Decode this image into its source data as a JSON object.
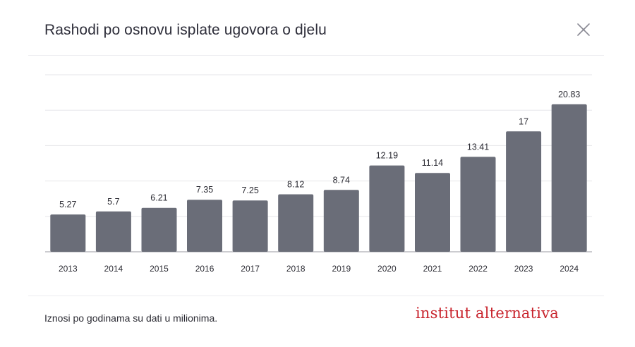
{
  "modal": {
    "title": "Rashodi po osnovu isplate ugovora o djelu",
    "close_icon": "close-icon"
  },
  "footer": {
    "note": "Iznosi po godinama su dati u milionima.",
    "brand": "institut alternativa",
    "brand_color": "#c8232c"
  },
  "chart_data": {
    "type": "bar",
    "title": "Rashodi po osnovu isplate ugovora o djelu",
    "categories": [
      "2013",
      "2014",
      "2015",
      "2016",
      "2017",
      "2018",
      "2019",
      "2020",
      "2021",
      "2022",
      "2023",
      "2024"
    ],
    "values": [
      5.27,
      5.7,
      6.21,
      7.35,
      7.25,
      8.12,
      8.74,
      12.19,
      11.14,
      13.41,
      17,
      20.83
    ],
    "value_labels": [
      "5.27",
      "5.7",
      "6.21",
      "7.35",
      "7.25",
      "8.12",
      "8.74",
      "12.19",
      "11.14",
      "13.41",
      "17",
      "20.83"
    ],
    "xlabel": "",
    "ylabel": "",
    "ylim": [
      0,
      25
    ],
    "grid": true,
    "y_tick_labels_visible": false,
    "bar_color": "#6a6d78",
    "gridline_color": "#e6e6ea"
  }
}
